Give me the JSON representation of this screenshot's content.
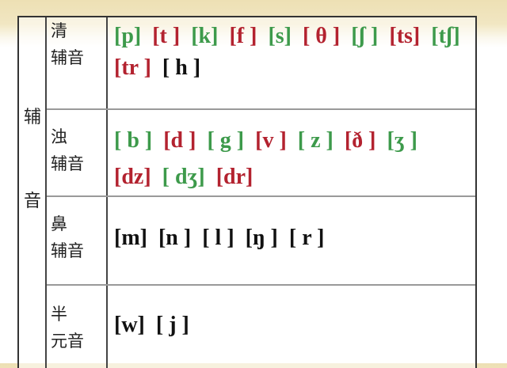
{
  "category": [
    "辅",
    "音"
  ],
  "colors": {
    "green": "#3d9a4b",
    "red": "#b3222f",
    "black": "#111111"
  },
  "rows": [
    {
      "label": [
        "清",
        "辅音"
      ],
      "lines": [
        [
          {
            "t": "[p]",
            "c": "green"
          },
          {
            "t": "[t ]",
            "c": "red"
          },
          {
            "t": "[k]",
            "c": "green"
          },
          {
            "t": "[f ]",
            "c": "red"
          },
          {
            "t": "[s]",
            "c": "green"
          },
          {
            "t": "[ θ ]",
            "c": "red"
          },
          {
            "t": "[ʃ ]",
            "c": "green"
          },
          {
            "t": "[ts]",
            "c": "red"
          },
          {
            "t": "[tʃ]",
            "c": "green"
          }
        ],
        [
          {
            "t": "[tr ]",
            "c": "red"
          },
          {
            "t": "[ h ]",
            "c": "black"
          }
        ]
      ]
    },
    {
      "label": [
        "浊",
        "辅音"
      ],
      "lines": [
        [
          {
            "t": "[ b ]",
            "c": "green"
          },
          {
            "t": "[d ]",
            "c": "red"
          },
          {
            "t": "[ g ]",
            "c": "green"
          },
          {
            "t": "[v ]",
            "c": "red"
          },
          {
            "t": "[ z ]",
            "c": "green"
          },
          {
            "t": "[ð ]",
            "c": "red"
          },
          {
            "t": "[ʒ ]",
            "c": "green"
          },
          {
            "t": "[dz]",
            "c": "red"
          },
          {
            "t": "[ dʒ]",
            "c": "green"
          },
          {
            "t": "[dr]",
            "c": "red"
          }
        ]
      ]
    },
    {
      "label": [
        "鼻",
        "辅音"
      ],
      "lines": [
        [
          {
            "t": "[m]",
            "c": "black"
          },
          {
            "t": "[n ]",
            "c": "black"
          },
          {
            "t": "[ l ]",
            "c": "black"
          },
          {
            "t": "[ŋ ]",
            "c": "black"
          },
          {
            "t": "[ r ]",
            "c": "black"
          }
        ]
      ]
    },
    {
      "label": [
        "半",
        "元音"
      ],
      "lines": [
        [
          {
            "t": "[w]",
            "c": "black"
          },
          {
            "t": "[ j ]",
            "c": "black"
          }
        ]
      ]
    }
  ]
}
